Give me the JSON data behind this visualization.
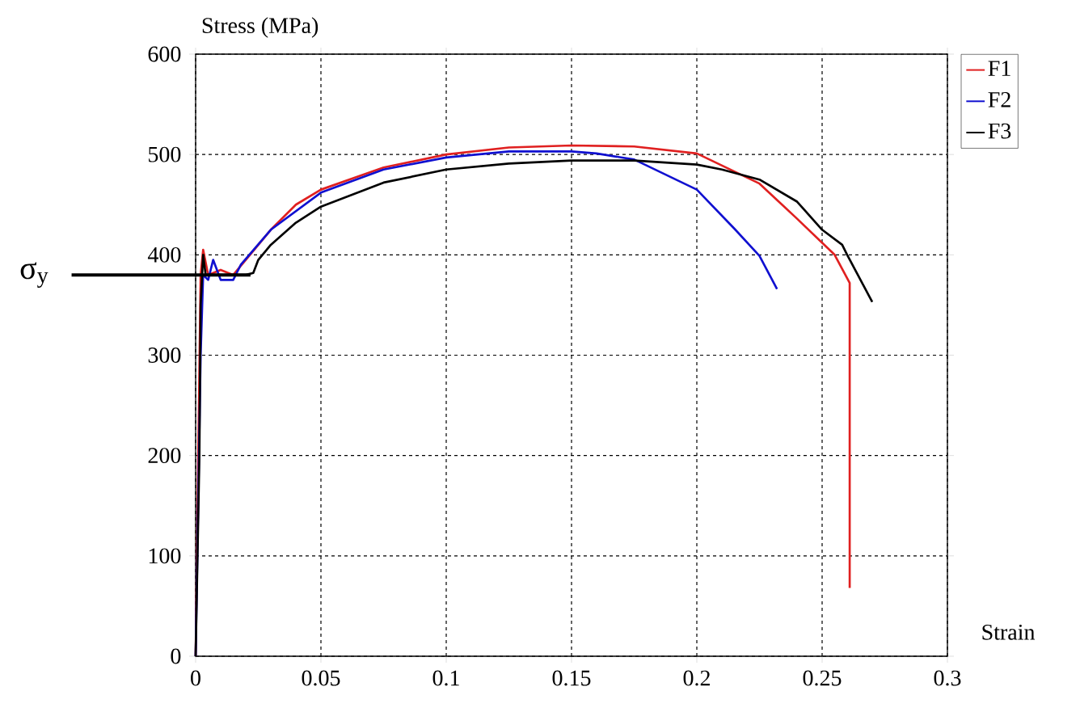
{
  "chart_data": {
    "type": "line",
    "xlabel": "Strain",
    "ylabel": "Stress (MPa)",
    "xlim": [
      0,
      0.3
    ],
    "ylim": [
      0,
      600
    ],
    "xticks": [
      0,
      0.05,
      0.1,
      0.15,
      0.2,
      0.25,
      0.3
    ],
    "yticks": [
      0,
      100,
      200,
      300,
      400,
      500,
      600
    ],
    "grid": true,
    "legend": "top right",
    "marker": "none",
    "line_style": "solid",
    "ref_lines": [
      {
        "axis": "y",
        "value": 380,
        "label": "σ$_{y}$",
        "color": "#000000"
      }
    ],
    "series": [
      {
        "name": "F1",
        "color": "#e02020",
        "x": [
          0,
          0.002,
          0.003,
          0.005,
          0.01,
          0.015,
          0.02,
          0.03,
          0.04,
          0.05,
          0.075,
          0.1,
          0.125,
          0.15,
          0.175,
          0.2,
          0.225,
          0.24,
          0.255,
          0.261,
          0.261
        ],
        "values": [
          0,
          380,
          405,
          380,
          385,
          380,
          395,
          425,
          450,
          465,
          487,
          500,
          507,
          509,
          508,
          501,
          471,
          436,
          400,
          372,
          68
        ]
      },
      {
        "name": "F2",
        "color": "#1010d0",
        "x": [
          0,
          0.001,
          0.002,
          0.003,
          0.005,
          0.007,
          0.01,
          0.015,
          0.018,
          0.03,
          0.05,
          0.075,
          0.1,
          0.125,
          0.15,
          0.16,
          0.175,
          0.2,
          0.215,
          0.225,
          0.232
        ],
        "values": [
          0,
          null,
          300,
          380,
          375,
          395,
          375,
          375,
          390,
          425,
          462,
          485,
          497,
          503,
          503,
          501,
          495,
          465,
          426,
          399,
          366
        ]
      },
      {
        "name": "F3",
        "color": "#000000",
        "x": [
          0,
          0.0015,
          0.002,
          0.003,
          0.004,
          0.01,
          0.02,
          0.023,
          0.025,
          0.03,
          0.04,
          0.05,
          0.075,
          0.1,
          0.125,
          0.15,
          0.175,
          0.2,
          0.21,
          0.225,
          0.24,
          0.25,
          0.258,
          0.26,
          0.27
        ],
        "values": [
          0,
          200,
          350,
          400,
          380,
          380,
          380,
          382,
          395,
          410,
          432,
          448,
          472,
          485,
          491,
          494,
          494,
          490,
          485,
          475,
          453,
          425,
          410,
          400,
          353
        ]
      }
    ]
  }
}
